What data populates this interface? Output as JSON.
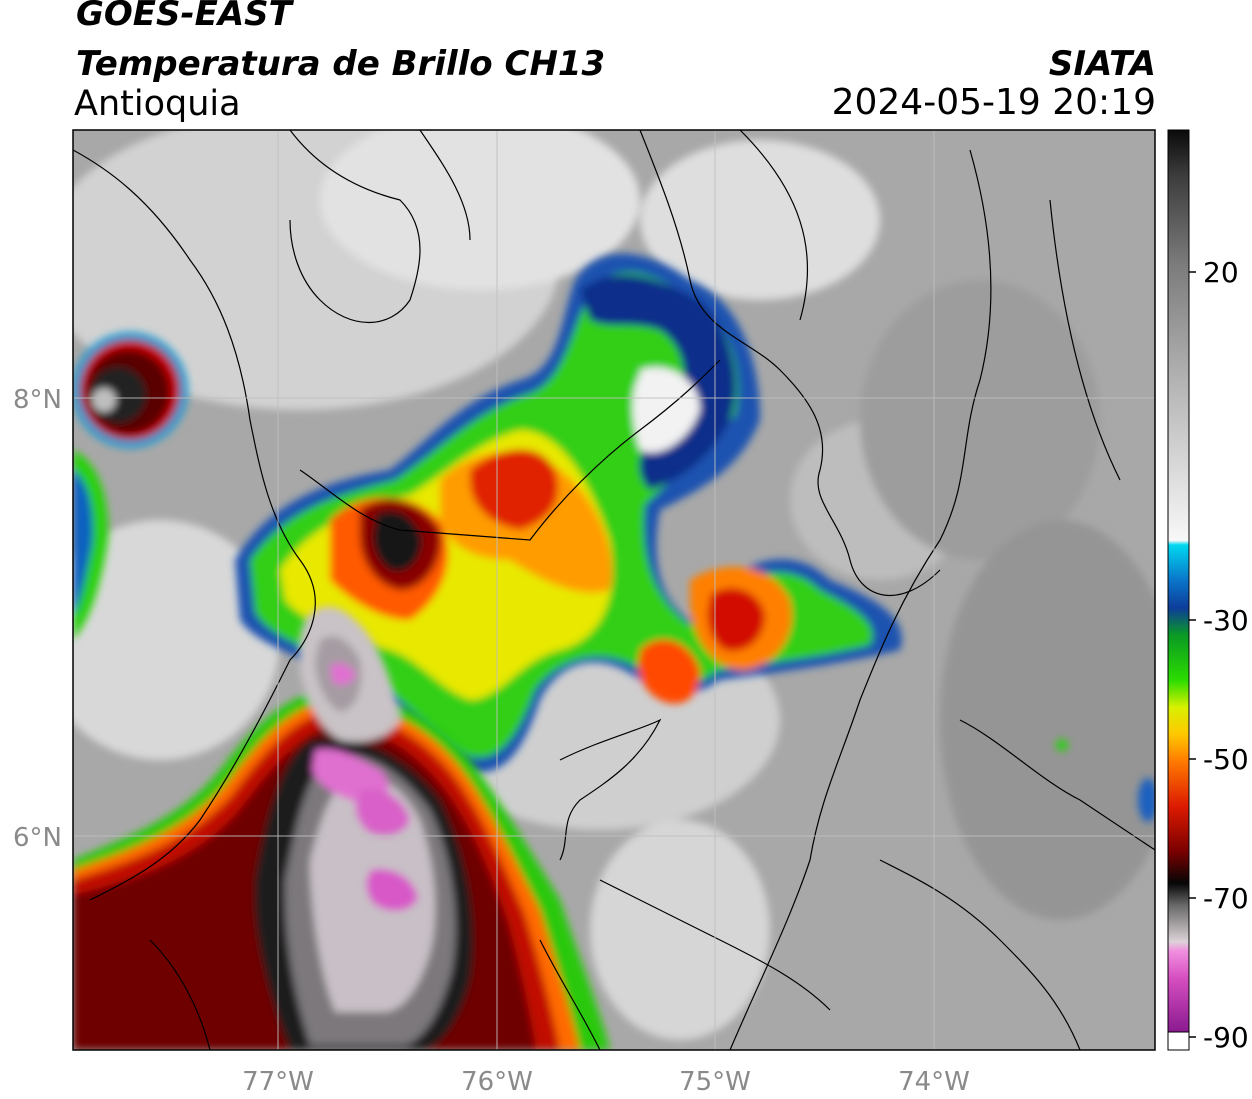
{
  "header": {
    "satellite": "GOES-EAST",
    "product": "Temperatura de Brillo CH13",
    "region": "Antioquia",
    "organization": "SIATA",
    "datetime": "2024-05-19 20:19"
  },
  "axes": {
    "lat_labels": [
      "8°N",
      "6°N"
    ],
    "lon_labels": [
      "77°W",
      "76°W",
      "75°W",
      "74°W"
    ]
  },
  "colorbar": {
    "ticks": [
      "20",
      "-30",
      "-50",
      "-70",
      "-90"
    ],
    "range": [
      -90,
      30
    ]
  },
  "colors": {
    "background": "#9a9a9a",
    "frame": "#000000",
    "graticule": "#bfbfbf"
  }
}
